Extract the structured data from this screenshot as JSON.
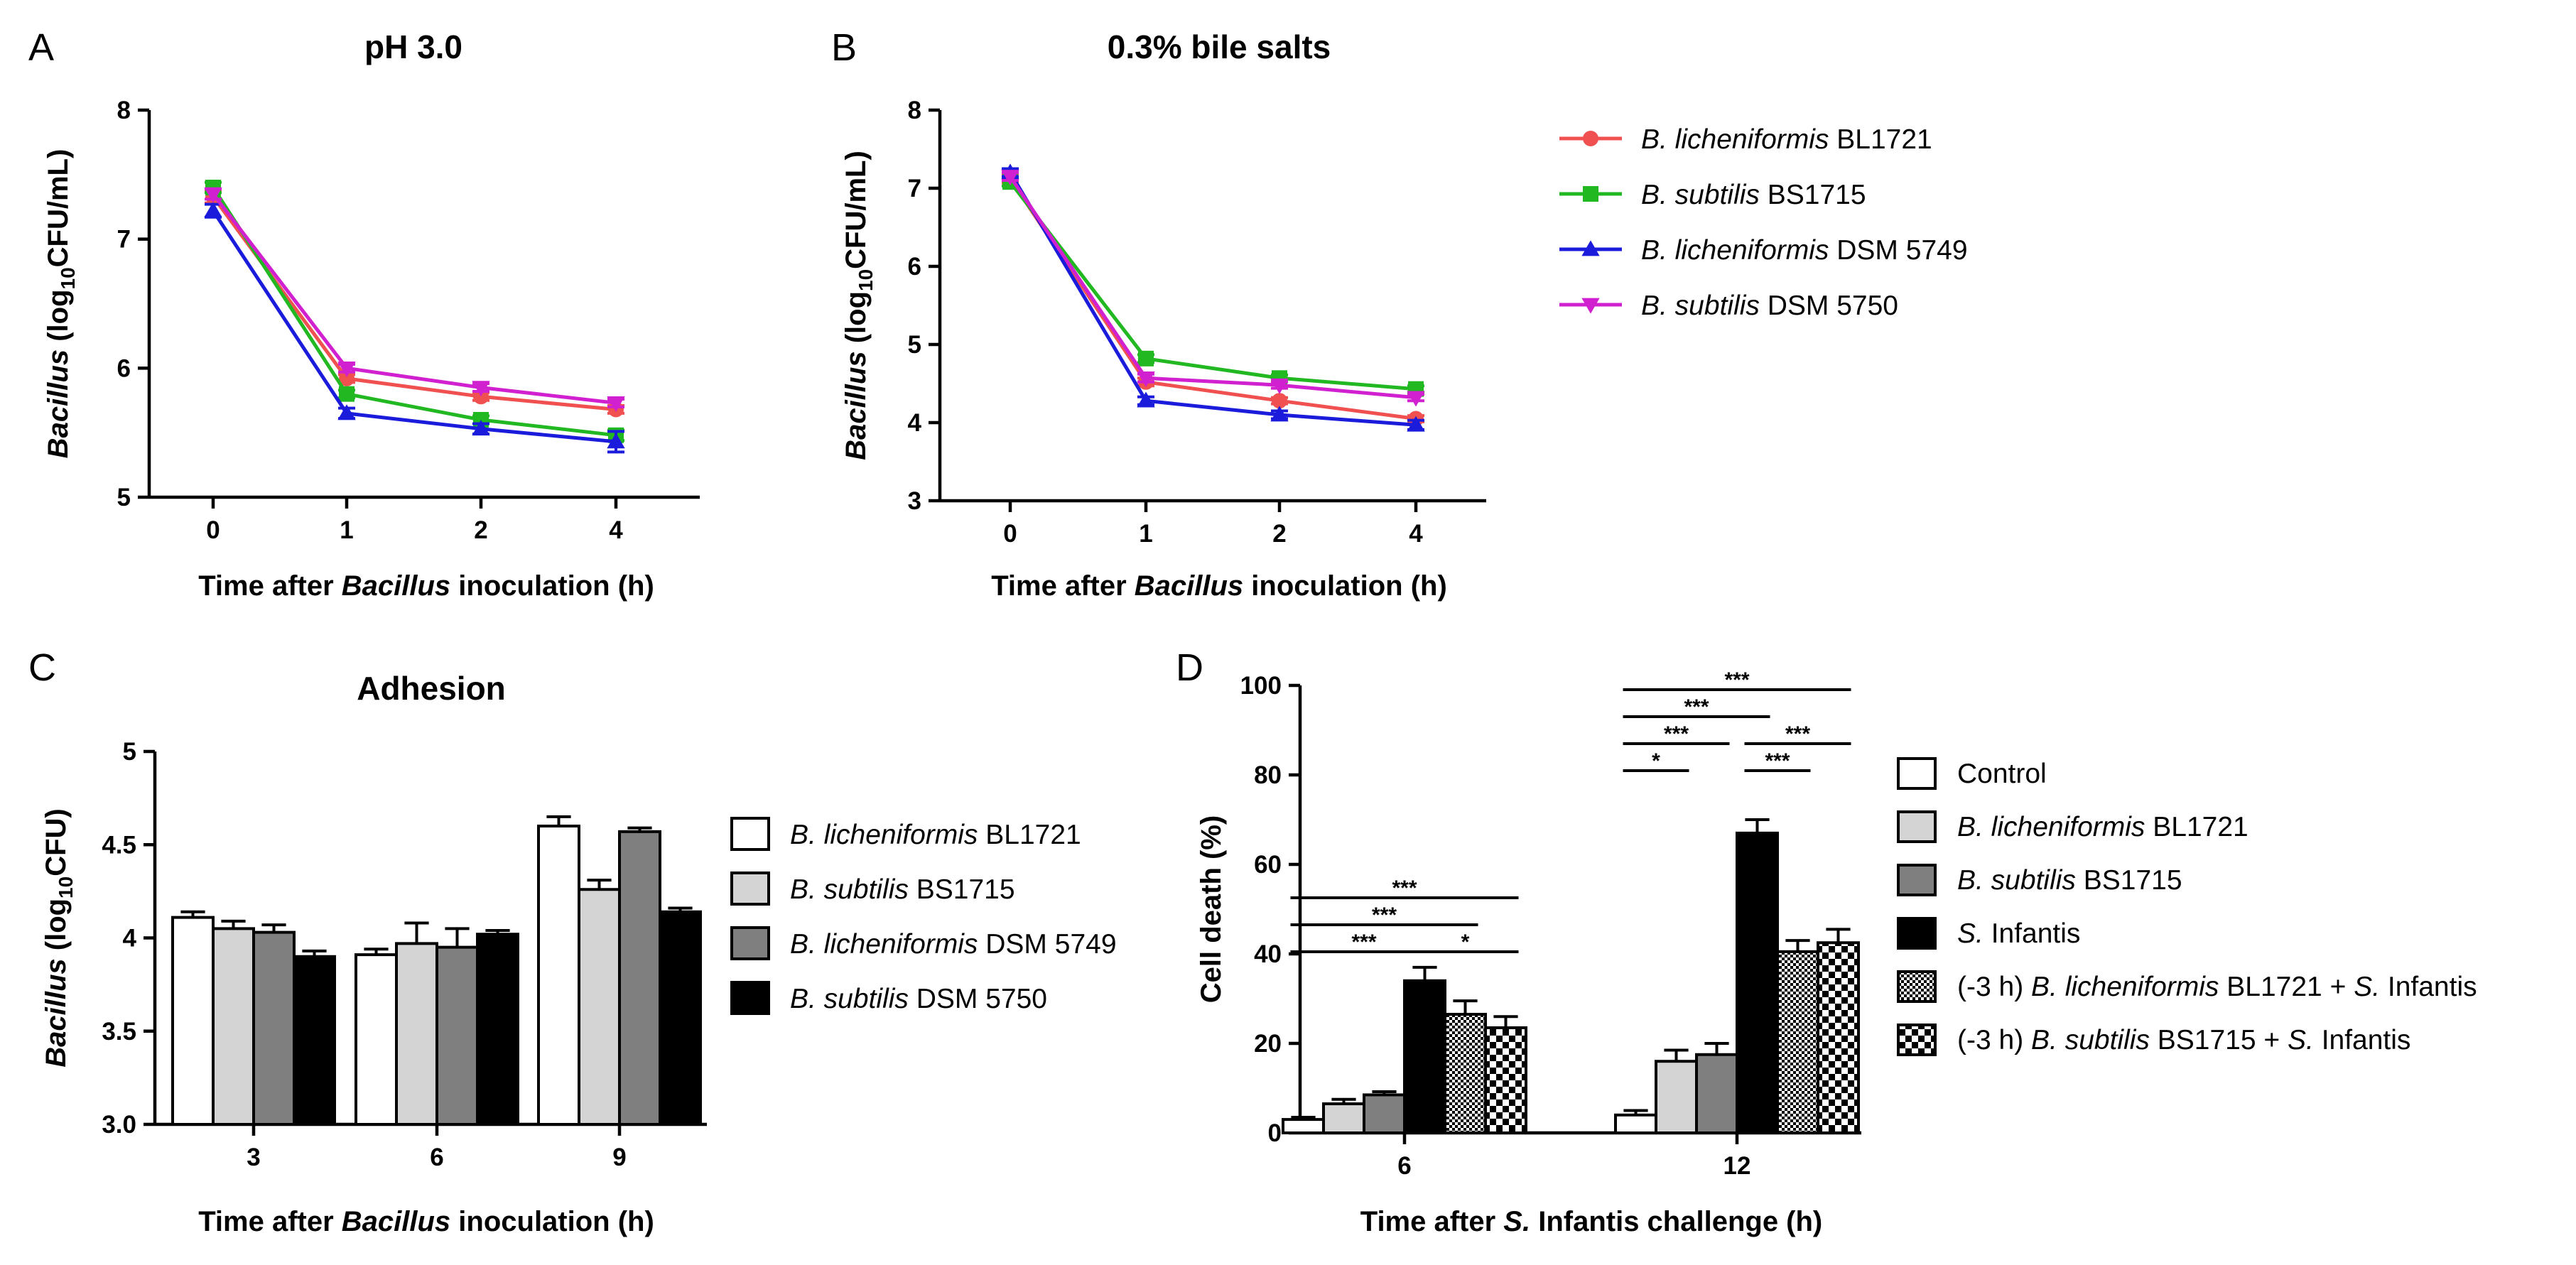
{
  "panels": {
    "A": {
      "letter": "A"
    },
    "B": {
      "letter": "B"
    },
    "C": {
      "letter": "C"
    },
    "D": {
      "letter": "D"
    }
  },
  "colors": {
    "bl1721_line": "#f05050",
    "bs1715_line": "#22b822",
    "dsm5749_line": "#1b1bdc",
    "dsm5750_line": "#d020d0",
    "bar_white": "#ffffff",
    "bar_lightgray": "#d4d4d4",
    "bar_gray": "#7f7f7f",
    "bar_black": "#000000"
  },
  "legend_line": [
    {
      "italic": "B. licheniformis",
      "rest": " BL1721",
      "marker": "circle",
      "color": "#f05050"
    },
    {
      "italic": "B. subtilis",
      "rest": " BS1715",
      "marker": "square",
      "color": "#22b822"
    },
    {
      "italic": "B. licheniformis",
      "rest": " DSM 5749",
      "marker": "triangle-up",
      "color": "#1b1bdc"
    },
    {
      "italic": "B. subtilis",
      "rest": " DSM 5750",
      "marker": "triangle-down",
      "color": "#d020d0"
    }
  ],
  "chart_data": [
    {
      "panel": "A",
      "type": "line",
      "title": "pH 3.0",
      "categories": [
        "0",
        "1",
        "2",
        "4"
      ],
      "ylim": [
        5,
        8
      ],
      "yticks": [
        "5",
        "6",
        "7",
        "8"
      ],
      "ylabel": {
        "italic": "Bacillus",
        "pre": " (log",
        "sub": "10",
        "post": "CFU/mL)"
      },
      "xlabel": {
        "pre": "Time after ",
        "italic": "Bacillus",
        "post": " inoculation (h)"
      },
      "series": [
        {
          "name": "B. licheniformis BL1721",
          "values": [
            7.33,
            5.92,
            5.78,
            5.68
          ],
          "errors": [
            0.05,
            0.03,
            0.03,
            0.03
          ]
        },
        {
          "name": "B. subtilis BS1715",
          "values": [
            7.4,
            5.8,
            5.6,
            5.48
          ],
          "errors": [
            0.04,
            0.03,
            0.03,
            0.04
          ]
        },
        {
          "name": "B. licheniformis DSM 5749",
          "values": [
            7.22,
            5.65,
            5.53,
            5.43
          ],
          "errors": [
            0.05,
            0.04,
            0.04,
            0.08
          ]
        },
        {
          "name": "B. subtilis DSM 5750",
          "values": [
            7.35,
            6.0,
            5.85,
            5.73
          ],
          "errors": [
            0.04,
            0.03,
            0.03,
            0.03
          ]
        }
      ]
    },
    {
      "panel": "B",
      "type": "line",
      "title": "0.3% bile salts",
      "categories": [
        "0",
        "1",
        "2",
        "4"
      ],
      "ylim": [
        3,
        8
      ],
      "yticks": [
        "3",
        "4",
        "5",
        "6",
        "7",
        "8"
      ],
      "ylabel": {
        "italic": "Bacillus",
        "pre": " (log",
        "sub": "10",
        "post": "CFU/mL)"
      },
      "xlabel": {
        "pre": "Time after ",
        "italic": "Bacillus",
        "post": " inoculation (h)"
      },
      "series": [
        {
          "name": "B. licheniformis BL1721",
          "values": [
            7.12,
            4.52,
            4.28,
            4.05
          ],
          "errors": [
            0.05,
            0.05,
            0.04,
            0.04
          ]
        },
        {
          "name": "B. subtilis BS1715",
          "values": [
            7.08,
            4.82,
            4.57,
            4.43
          ],
          "errors": [
            0.05,
            0.05,
            0.04,
            0.04
          ]
        },
        {
          "name": "B. licheniformis DSM 5749",
          "values": [
            7.2,
            4.28,
            4.1,
            3.97
          ],
          "errors": [
            0.05,
            0.05,
            0.05,
            0.06
          ]
        },
        {
          "name": "B. subtilis DSM 5750",
          "values": [
            7.15,
            4.57,
            4.48,
            4.32
          ],
          "errors": [
            0.05,
            0.05,
            0.04,
            0.04
          ]
        }
      ]
    },
    {
      "panel": "C",
      "type": "bar",
      "title": "Adhesion",
      "categories": [
        "3",
        "6",
        "9"
      ],
      "ylim": [
        3,
        5
      ],
      "yticks": [
        "3.0",
        "3.5",
        "4",
        "4.5",
        "5"
      ],
      "ylabel": {
        "italic": "Bacillus",
        "pre": " (log",
        "sub": "10",
        "post": "CFU)"
      },
      "xlabel": {
        "pre": "Time after ",
        "italic": "Bacillus",
        "post": " inoculation (h)"
      },
      "series": [
        {
          "name": "B. licheniformis BL1721",
          "italic": "B. licheniformis",
          "rest": " BL1721",
          "fill": "white",
          "values": [
            4.11,
            3.91,
            4.6
          ],
          "errors": [
            0.03,
            0.03,
            0.05
          ]
        },
        {
          "name": "B. subtilis BS1715",
          "italic": "B. subtilis",
          "rest": " BS1715",
          "fill": "lightgray",
          "values": [
            4.05,
            3.97,
            4.26
          ],
          "errors": [
            0.04,
            0.11,
            0.05
          ]
        },
        {
          "name": "B. licheniformis DSM 5749",
          "italic": "B. licheniformis",
          "rest": " DSM 5749",
          "fill": "gray",
          "values": [
            4.03,
            3.95,
            4.57
          ],
          "errors": [
            0.04,
            0.1,
            0.02
          ]
        },
        {
          "name": "B. subtilis DSM 5750",
          "italic": "B. subtilis",
          "rest": " DSM 5750",
          "fill": "black",
          "values": [
            3.9,
            4.02,
            4.14
          ],
          "errors": [
            0.03,
            0.02,
            0.02
          ]
        }
      ]
    },
    {
      "panel": "D",
      "type": "bar",
      "title": "",
      "categories": [
        "6",
        "12"
      ],
      "ylim": [
        0,
        100
      ],
      "yticks": [
        "0",
        "20",
        "40",
        "60",
        "80",
        "100"
      ],
      "ylabel": {
        "italic": "",
        "pre": "Cell death (%)",
        "sub": "",
        "post": ""
      },
      "xlabel": {
        "pre": "Time after ",
        "italic": "S.",
        "post": " Infantis challenge (h)"
      },
      "series": [
        {
          "name": "Control",
          "parts": [
            [
              "Control",
              false
            ]
          ],
          "fill": "white",
          "values": [
            3,
            4
          ],
          "errors": [
            0.5,
            1
          ]
        },
        {
          "name": "B. licheniformis BL1721",
          "parts": [
            [
              "B. licheniformis",
              true
            ],
            [
              " BL1721",
              false
            ]
          ],
          "fill": "lightgray",
          "values": [
            6.5,
            16
          ],
          "errors": [
            1,
            2.5
          ]
        },
        {
          "name": "B. subtilis BS1715",
          "parts": [
            [
              "B. subtilis",
              true
            ],
            [
              " BS1715",
              false
            ]
          ],
          "fill": "gray",
          "values": [
            8.5,
            17.5
          ],
          "errors": [
            0.7,
            2.5
          ]
        },
        {
          "name": "S. Infantis",
          "parts": [
            [
              "S.",
              true
            ],
            [
              " Infantis",
              false
            ]
          ],
          "fill": "black",
          "values": [
            34,
            67
          ],
          "errors": [
            3,
            3
          ]
        },
        {
          "name": "(-3 h) B. licheniformis BL1721 + S. Infantis",
          "parts": [
            [
              "(-3 h) ",
              false
            ],
            [
              "B. licheniformis",
              true
            ],
            [
              " BL1721 + ",
              false
            ],
            [
              "S.",
              true
            ],
            [
              " Infantis",
              false
            ]
          ],
          "fill": "fine-check",
          "values": [
            26.5,
            40.5
          ],
          "errors": [
            3,
            2.5
          ]
        },
        {
          "name": "(-3 h) B. subtilis BS1715 + S. Infantis",
          "parts": [
            [
              "(-3 h) ",
              false
            ],
            [
              "B. subtilis",
              true
            ],
            [
              " BS1715 + ",
              false
            ],
            [
              "S.",
              true
            ],
            [
              " Infantis",
              false
            ]
          ],
          "fill": "coarse-check",
          "values": [
            23.5,
            42.5
          ],
          "errors": [
            2.5,
            3
          ]
        }
      ],
      "significance": [
        {
          "group": 0,
          "from": 0,
          "to": 3,
          "level": 0,
          "label": "***"
        },
        {
          "group": 0,
          "from": 3,
          "to": 5,
          "level": 0,
          "label": "*"
        },
        {
          "group": 0,
          "from": 0,
          "to": 4,
          "level": 1,
          "label": "***"
        },
        {
          "group": 0,
          "from": 0,
          "to": 5,
          "level": 2,
          "label": "***"
        },
        {
          "group": 1,
          "from": 0,
          "to": 1,
          "level": 0,
          "label": "*"
        },
        {
          "group": 1,
          "from": 3,
          "to": 4,
          "level": 0,
          "label": "***"
        },
        {
          "group": 1,
          "from": 0,
          "to": 2,
          "level": 1,
          "label": "***"
        },
        {
          "group": 1,
          "from": 3,
          "to": 5,
          "level": 1,
          "label": "***"
        },
        {
          "group": 1,
          "from": 0,
          "to": 3,
          "level": 2,
          "label": "***"
        },
        {
          "group": 1,
          "from": 0,
          "to": 5,
          "level": 3,
          "label": "***"
        }
      ]
    }
  ]
}
